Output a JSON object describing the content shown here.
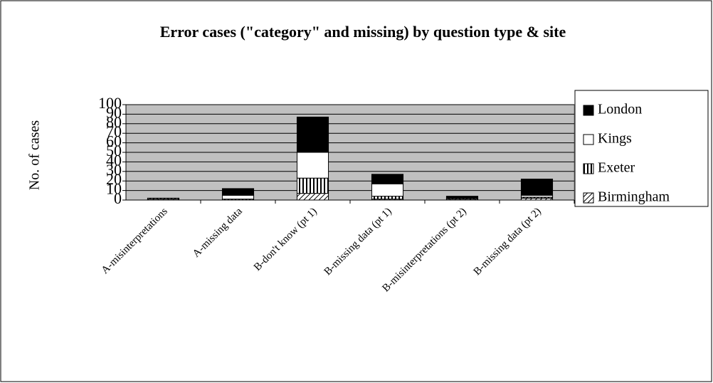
{
  "chart_data": {
    "type": "stacked-bar",
    "title": "Error cases (\"category\" and missing) by question type & site",
    "y_label": "No. of cases",
    "categories": [
      "A-misinterpretations",
      "A-missing data",
      "B-don't know (pt 1)",
      "B-missing data (pt 1)",
      "B-misinterpretations (pt 2)",
      "B-missing data (pt 2)"
    ],
    "series": [
      {
        "name": "Birmingham",
        "color": "#000000",
        "pattern": "diagonal-hatch",
        "values": [
          1,
          0,
          7,
          1,
          1,
          2
        ]
      },
      {
        "name": "Exeter",
        "color": "#000000",
        "pattern": "vertical-stripes",
        "values": [
          1,
          1,
          16,
          3,
          1,
          1
        ]
      },
      {
        "name": "Kings",
        "color": "#ffffff",
        "pattern": "solid",
        "values": [
          0,
          4,
          27,
          13,
          0,
          2
        ]
      },
      {
        "name": "London",
        "color": "#000000",
        "pattern": "solid",
        "values": [
          0,
          7,
          37,
          10,
          2,
          17
        ]
      }
    ],
    "ylim": [
      0,
      100
    ],
    "yticks": [
      0,
      10,
      20,
      30,
      40,
      50,
      60,
      70,
      80,
      90,
      100
    ],
    "grid": true,
    "legend": "right",
    "plot_background": "#c0c0c0"
  }
}
